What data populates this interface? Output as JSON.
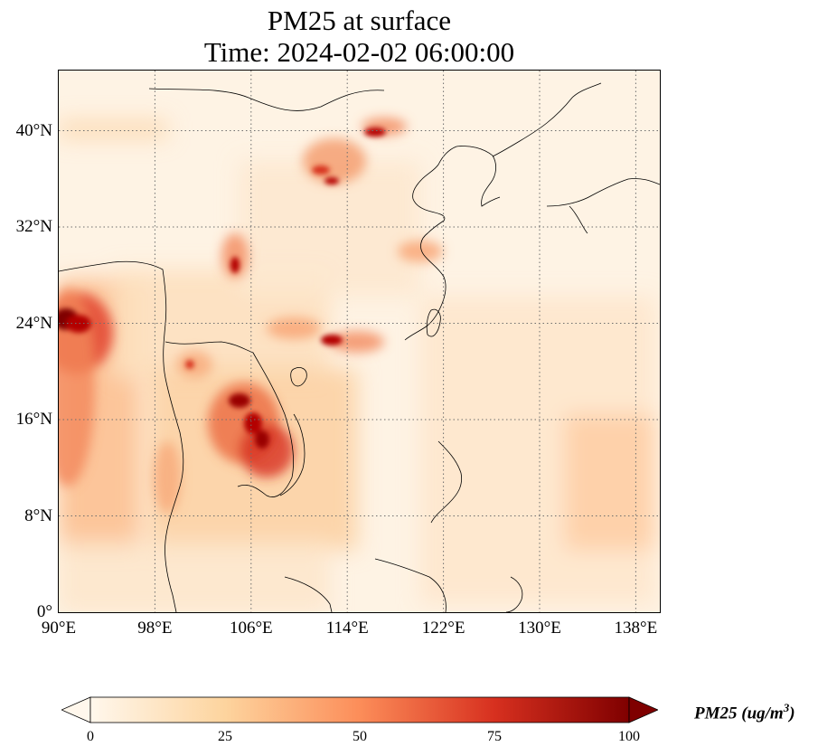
{
  "title_line1": "PM25 at surface",
  "title_line2": "Time: 2024-02-02 06:00:00",
  "map": {
    "lon_range": [
      90,
      140
    ],
    "lat_range": [
      0,
      45
    ],
    "lat_ticks": [
      {
        "value": 0,
        "label": "0°"
      },
      {
        "value": 8,
        "label": "8°N"
      },
      {
        "value": 16,
        "label": "16°N"
      },
      {
        "value": 24,
        "label": "24°N"
      },
      {
        "value": 32,
        "label": "32°N"
      },
      {
        "value": 40,
        "label": "40°N"
      }
    ],
    "lon_ticks": [
      {
        "value": 90,
        "label": "90°E"
      },
      {
        "value": 98,
        "label": "98°E"
      },
      {
        "value": 106,
        "label": "106°E"
      },
      {
        "value": 114,
        "label": "114°E"
      },
      {
        "value": 122,
        "label": "122°E"
      },
      {
        "value": 130,
        "label": "130°E"
      },
      {
        "value": 138,
        "label": "138°E"
      }
    ],
    "gridlines": "dotted",
    "field_colors": {
      "background": "#fef3e4",
      "low": "#fde0bf",
      "mid": "#fcae7a",
      "high": "#e34a33",
      "peak": "#b30000",
      "extreme": "#7f0000"
    }
  },
  "colorbar": {
    "min": 0,
    "max": 100,
    "extend": "both",
    "ticks": [
      {
        "value": 0,
        "label": "0"
      },
      {
        "value": 25,
        "label": "25"
      },
      {
        "value": 50,
        "label": "50"
      },
      {
        "value": 75,
        "label": "75"
      },
      {
        "value": 100,
        "label": "100"
      }
    ],
    "label_text": "PM25 (ug/m",
    "label_exponent": "3",
    "label_close": ")",
    "colormap": "OrRd",
    "stops": [
      "#fff7ec",
      "#fdd49e",
      "#fc8d59",
      "#d7301f",
      "#7f0000"
    ]
  }
}
